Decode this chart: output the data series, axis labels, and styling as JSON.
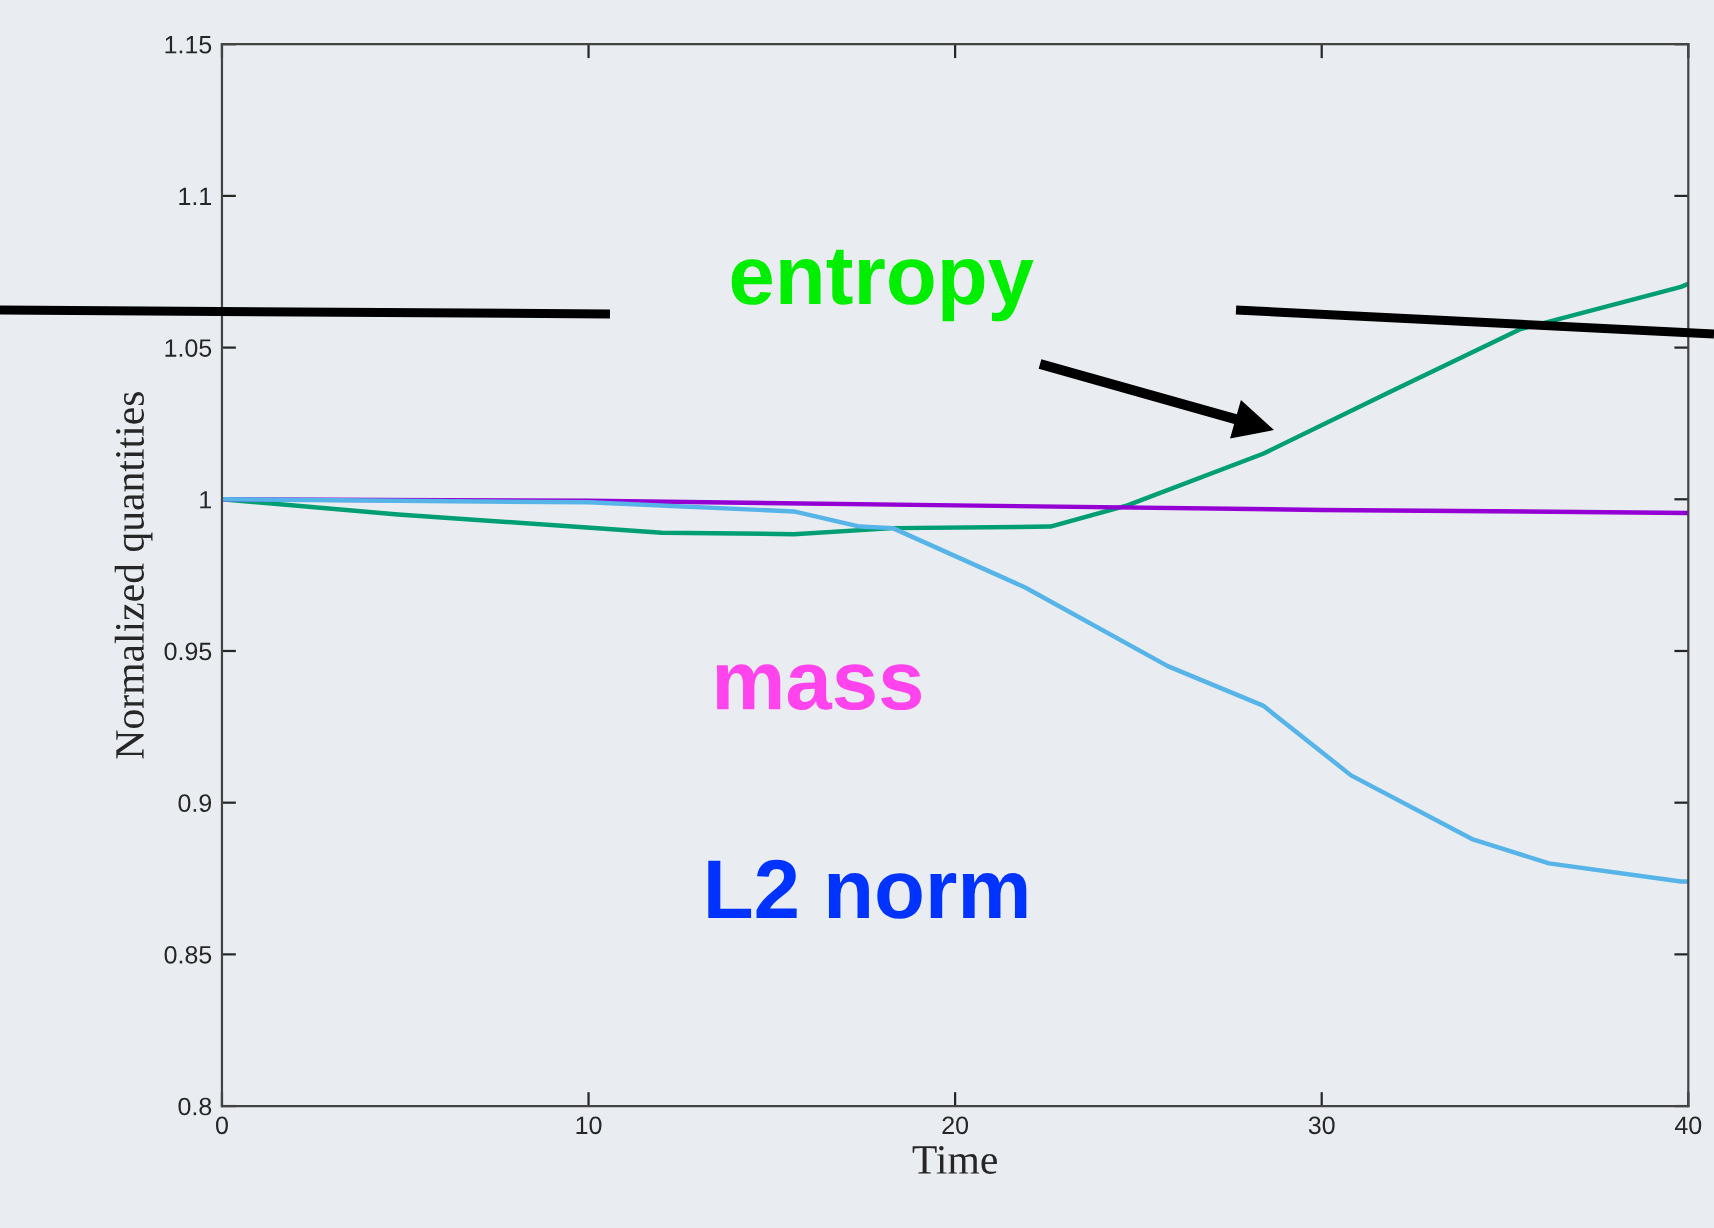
{
  "chart_data": {
    "type": "line",
    "xlabel": "Time",
    "ylabel": "Normalized quantities",
    "xlim": [
      0,
      40
    ],
    "ylim": [
      0.8,
      1.15
    ],
    "xticks": [
      0,
      10,
      20,
      30,
      40
    ],
    "yticks": [
      0.8,
      0.85,
      0.9,
      0.95,
      1,
      1.05,
      1.1,
      1.15
    ],
    "grid": false,
    "legend": false,
    "series": [
      {
        "color": "#009e73",
        "x": [
          0,
          4.8,
          12,
          15.6,
          18.3,
          22.6,
          24.7,
          28.4,
          31.8,
          35.4,
          39.8,
          40
        ],
        "values": [
          1.0,
          0.995,
          0.989,
          0.9885,
          0.9905,
          0.991,
          0.998,
          1.015,
          1.035,
          1.056,
          1.07,
          1.071
        ]
      },
      {
        "color": "#9400d3",
        "x": [
          0,
          10,
          20,
          30,
          40
        ],
        "values": [
          1.0,
          0.9995,
          0.998,
          0.9965,
          0.9955
        ]
      },
      {
        "color": "#56b4e9",
        "x": [
          0,
          10,
          15.6,
          17.4,
          18.3,
          21.9,
          25.8,
          28.4,
          30.8,
          34.1,
          36.2,
          39.8,
          40
        ],
        "values": [
          1.0,
          0.999,
          0.996,
          0.991,
          0.9905,
          0.971,
          0.945,
          0.932,
          0.909,
          0.888,
          0.88,
          0.874,
          0.874
        ]
      }
    ],
    "annotations": [
      "entropy",
      "mass",
      "L2 norm"
    ]
  }
}
